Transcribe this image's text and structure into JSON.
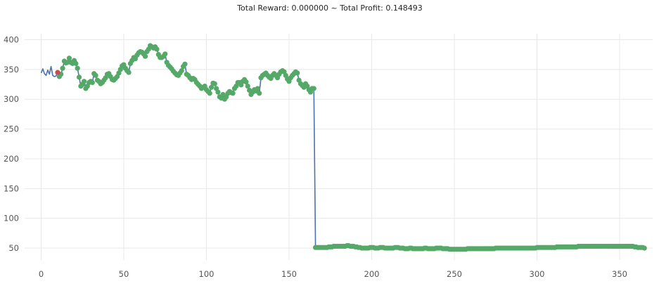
{
  "chart_data": {
    "type": "line",
    "title": "Total Reward: 0.000000 ~ Total Profit: 0.148493",
    "xlabel": "",
    "ylabel": "",
    "xlim": [
      -10,
      370
    ],
    "ylim": [
      30,
      410
    ],
    "grid": true,
    "legend": "none",
    "x_ticks": [
      0,
      50,
      100,
      150,
      200,
      250,
      300,
      350
    ],
    "y_ticks": [
      50,
      100,
      150,
      200,
      250,
      300,
      350,
      400
    ],
    "colors": {
      "price_line": "#4c72b0",
      "marker_green": "#55a868",
      "marker_red": "#c44e52"
    },
    "price_points": [
      [
        0,
        344
      ],
      [
        1,
        351
      ],
      [
        2,
        343
      ],
      [
        3,
        340
      ],
      [
        4,
        349
      ],
      [
        5,
        342
      ],
      [
        6,
        355
      ],
      [
        7,
        340
      ],
      [
        8,
        338
      ],
      [
        9,
        339
      ],
      [
        10,
        345
      ],
      [
        11,
        338
      ],
      [
        12,
        342
      ],
      [
        13,
        352
      ],
      [
        14,
        364
      ],
      [
        15,
        361
      ],
      [
        16,
        362
      ],
      [
        17,
        369
      ],
      [
        18,
        362
      ],
      [
        19,
        360
      ],
      [
        20,
        365
      ],
      [
        21,
        360
      ],
      [
        22,
        352
      ],
      [
        23,
        337
      ],
      [
        24,
        322
      ],
      [
        25,
        325
      ],
      [
        26,
        330
      ],
      [
        27,
        318
      ],
      [
        28,
        322
      ],
      [
        29,
        328
      ],
      [
        30,
        330
      ],
      [
        31,
        328
      ],
      [
        32,
        343
      ],
      [
        33,
        340
      ],
      [
        34,
        332
      ],
      [
        35,
        330
      ],
      [
        36,
        326
      ],
      [
        37,
        328
      ],
      [
        38,
        332
      ],
      [
        39,
        336
      ],
      [
        40,
        342
      ],
      [
        41,
        343
      ],
      [
        42,
        338
      ],
      [
        43,
        333
      ],
      [
        44,
        332
      ],
      [
        45,
        335
      ],
      [
        46,
        338
      ],
      [
        47,
        344
      ],
      [
        48,
        350
      ],
      [
        49,
        356
      ],
      [
        50,
        358
      ],
      [
        51,
        352
      ],
      [
        52,
        348
      ],
      [
        53,
        345
      ],
      [
        54,
        360
      ],
      [
        55,
        365
      ],
      [
        56,
        370
      ],
      [
        57,
        368
      ],
      [
        58,
        374
      ],
      [
        59,
        378
      ],
      [
        60,
        380
      ],
      [
        61,
        379
      ],
      [
        62,
        376
      ],
      [
        63,
        372
      ],
      [
        64,
        380
      ],
      [
        65,
        384
      ],
      [
        66,
        390
      ],
      [
        67,
        388
      ],
      [
        68,
        386
      ],
      [
        69,
        388
      ],
      [
        70,
        384
      ],
      [
        71,
        375
      ],
      [
        72,
        370
      ],
      [
        73,
        370
      ],
      [
        74,
        372
      ],
      [
        75,
        376
      ],
      [
        76,
        362
      ],
      [
        77,
        357
      ],
      [
        78,
        354
      ],
      [
        79,
        351
      ],
      [
        80,
        347
      ],
      [
        81,
        344
      ],
      [
        82,
        341
      ],
      [
        83,
        340
      ],
      [
        84,
        344
      ],
      [
        85,
        348
      ],
      [
        86,
        355
      ],
      [
        87,
        359
      ],
      [
        88,
        342
      ],
      [
        89,
        340
      ],
      [
        90,
        336
      ],
      [
        91,
        333
      ],
      [
        92,
        335
      ],
      [
        93,
        333
      ],
      [
        94,
        328
      ],
      [
        95,
        325
      ],
      [
        96,
        322
      ],
      [
        97,
        318
      ],
      [
        98,
        320
      ],
      [
        99,
        322
      ],
      [
        100,
        316
      ],
      [
        101,
        313
      ],
      [
        102,
        310
      ],
      [
        103,
        320
      ],
      [
        104,
        327
      ],
      [
        105,
        326
      ],
      [
        106,
        318
      ],
      [
        107,
        312
      ],
      [
        108,
        304
      ],
      [
        109,
        302
      ],
      [
        110,
        308
      ],
      [
        111,
        300
      ],
      [
        112,
        304
      ],
      [
        113,
        310
      ],
      [
        114,
        313
      ],
      [
        115,
        311
      ],
      [
        116,
        310
      ],
      [
        117,
        318
      ],
      [
        118,
        322
      ],
      [
        119,
        328
      ],
      [
        120,
        328
      ],
      [
        121,
        324
      ],
      [
        122,
        330
      ],
      [
        123,
        333
      ],
      [
        124,
        329
      ],
      [
        125,
        322
      ],
      [
        126,
        315
      ],
      [
        127,
        308
      ],
      [
        128,
        312
      ],
      [
        129,
        316
      ],
      [
        130,
        314
      ],
      [
        131,
        318
      ],
      [
        132,
        310
      ],
      [
        133,
        336
      ],
      [
        134,
        340
      ],
      [
        135,
        342
      ],
      [
        136,
        344
      ],
      [
        137,
        340
      ],
      [
        138,
        337
      ],
      [
        139,
        335
      ],
      [
        140,
        340
      ],
      [
        141,
        343
      ],
      [
        142,
        340
      ],
      [
        143,
        336
      ],
      [
        144,
        342
      ],
      [
        145,
        346
      ],
      [
        146,
        348
      ],
      [
        147,
        346
      ],
      [
        148,
        340
      ],
      [
        149,
        334
      ],
      [
        150,
        330
      ],
      [
        151,
        336
      ],
      [
        152,
        340
      ],
      [
        153,
        343
      ],
      [
        154,
        346
      ],
      [
        155,
        344
      ],
      [
        156,
        332
      ],
      [
        157,
        326
      ],
      [
        158,
        323
      ],
      [
        159,
        320
      ],
      [
        160,
        326
      ],
      [
        161,
        322
      ],
      [
        162,
        316
      ],
      [
        163,
        312
      ],
      [
        164,
        318
      ],
      [
        165,
        318
      ],
      [
        166,
        51
      ],
      [
        167,
        51
      ],
      [
        168,
        51
      ],
      [
        169,
        51
      ],
      [
        170,
        51
      ],
      [
        171,
        51
      ],
      [
        172,
        51
      ],
      [
        173,
        51
      ],
      [
        174,
        52
      ],
      [
        175,
        52
      ],
      [
        176,
        52
      ],
      [
        177,
        53
      ],
      [
        178,
        53
      ],
      [
        179,
        53
      ],
      [
        180,
        53
      ],
      [
        181,
        53
      ],
      [
        182,
        53
      ],
      [
        183,
        53
      ],
      [
        184,
        53
      ],
      [
        185,
        54
      ],
      [
        186,
        54
      ],
      [
        187,
        53
      ],
      [
        188,
        53
      ],
      [
        189,
        53
      ],
      [
        190,
        52
      ],
      [
        191,
        52
      ],
      [
        192,
        51
      ],
      [
        193,
        51
      ],
      [
        194,
        50
      ],
      [
        195,
        50
      ],
      [
        196,
        50
      ],
      [
        197,
        50
      ],
      [
        198,
        50
      ],
      [
        199,
        51
      ],
      [
        200,
        51
      ],
      [
        201,
        51
      ],
      [
        202,
        50
      ],
      [
        203,
        50
      ],
      [
        204,
        50
      ],
      [
        205,
        51
      ],
      [
        206,
        51
      ],
      [
        207,
        51
      ],
      [
        208,
        50
      ],
      [
        209,
        50
      ],
      [
        210,
        50
      ],
      [
        211,
        50
      ],
      [
        212,
        50
      ],
      [
        213,
        50
      ],
      [
        214,
        51
      ],
      [
        215,
        51
      ],
      [
        216,
        51
      ],
      [
        217,
        50
      ],
      [
        218,
        50
      ],
      [
        219,
        50
      ],
      [
        220,
        49
      ],
      [
        221,
        49
      ],
      [
        222,
        49
      ],
      [
        223,
        50
      ],
      [
        224,
        50
      ],
      [
        225,
        49
      ],
      [
        226,
        49
      ],
      [
        227,
        49
      ],
      [
        228,
        49
      ],
      [
        229,
        49
      ],
      [
        230,
        49
      ],
      [
        231,
        49
      ],
      [
        232,
        50
      ],
      [
        233,
        50
      ],
      [
        234,
        49
      ],
      [
        235,
        49
      ],
      [
        236,
        49
      ],
      [
        237,
        49
      ],
      [
        238,
        49
      ],
      [
        239,
        50
      ],
      [
        240,
        50
      ],
      [
        241,
        50
      ],
      [
        242,
        50
      ],
      [
        243,
        49
      ],
      [
        244,
        49
      ],
      [
        245,
        49
      ],
      [
        246,
        49
      ],
      [
        247,
        48
      ],
      [
        248,
        48
      ],
      [
        249,
        48
      ],
      [
        250,
        48
      ],
      [
        251,
        48
      ],
      [
        252,
        48
      ],
      [
        253,
        48
      ],
      [
        254,
        48
      ],
      [
        255,
        48
      ],
      [
        256,
        48
      ],
      [
        257,
        48
      ],
      [
        258,
        49
      ],
      [
        259,
        49
      ],
      [
        260,
        49
      ],
      [
        261,
        49
      ],
      [
        262,
        49
      ],
      [
        263,
        49
      ],
      [
        264,
        49
      ],
      [
        265,
        49
      ],
      [
        266,
        49
      ],
      [
        267,
        49
      ],
      [
        268,
        49
      ],
      [
        269,
        49
      ],
      [
        270,
        49
      ],
      [
        271,
        49
      ],
      [
        272,
        49
      ],
      [
        273,
        49
      ],
      [
        274,
        49
      ],
      [
        275,
        50
      ],
      [
        276,
        50
      ],
      [
        277,
        50
      ],
      [
        278,
        50
      ],
      [
        279,
        50
      ],
      [
        280,
        50
      ],
      [
        281,
        50
      ],
      [
        282,
        50
      ],
      [
        283,
        50
      ],
      [
        284,
        50
      ],
      [
        285,
        50
      ],
      [
        286,
        50
      ],
      [
        287,
        50
      ],
      [
        288,
        50
      ],
      [
        289,
        50
      ],
      [
        290,
        50
      ],
      [
        291,
        50
      ],
      [
        292,
        50
      ],
      [
        293,
        50
      ],
      [
        294,
        50
      ],
      [
        295,
        50
      ],
      [
        296,
        50
      ],
      [
        297,
        50
      ],
      [
        298,
        50
      ],
      [
        299,
        50
      ],
      [
        300,
        51
      ],
      [
        301,
        51
      ],
      [
        302,
        51
      ],
      [
        303,
        51
      ],
      [
        304,
        51
      ],
      [
        305,
        51
      ],
      [
        306,
        51
      ],
      [
        307,
        51
      ],
      [
        308,
        51
      ],
      [
        309,
        51
      ],
      [
        310,
        51
      ],
      [
        311,
        51
      ],
      [
        312,
        52
      ],
      [
        313,
        52
      ],
      [
        314,
        52
      ],
      [
        315,
        52
      ],
      [
        316,
        52
      ],
      [
        317,
        52
      ],
      [
        318,
        52
      ],
      [
        319,
        52
      ],
      [
        320,
        52
      ],
      [
        321,
        52
      ],
      [
        322,
        52
      ],
      [
        323,
        52
      ],
      [
        324,
        52
      ],
      [
        325,
        53
      ],
      [
        326,
        53
      ],
      [
        327,
        53
      ],
      [
        328,
        53
      ],
      [
        329,
        53
      ],
      [
        330,
        53
      ],
      [
        331,
        53
      ],
      [
        332,
        53
      ],
      [
        333,
        53
      ],
      [
        334,
        53
      ],
      [
        335,
        53
      ],
      [
        336,
        53
      ],
      [
        337,
        53
      ],
      [
        338,
        53
      ],
      [
        339,
        53
      ],
      [
        340,
        53
      ],
      [
        341,
        53
      ],
      [
        342,
        53
      ],
      [
        343,
        53
      ],
      [
        344,
        53
      ],
      [
        345,
        53
      ],
      [
        346,
        53
      ],
      [
        347,
        53
      ],
      [
        348,
        53
      ],
      [
        349,
        53
      ],
      [
        350,
        53
      ],
      [
        351,
        53
      ],
      [
        352,
        53
      ],
      [
        353,
        53
      ],
      [
        354,
        53
      ],
      [
        355,
        53
      ],
      [
        356,
        53
      ],
      [
        357,
        53
      ],
      [
        358,
        53
      ],
      [
        359,
        52
      ],
      [
        360,
        52
      ],
      [
        361,
        51
      ],
      [
        362,
        51
      ],
      [
        363,
        51
      ],
      [
        364,
        51
      ],
      [
        365,
        50
      ]
    ],
    "markers_green_from_x": 11,
    "markers_red_x": [
      10
    ]
  }
}
